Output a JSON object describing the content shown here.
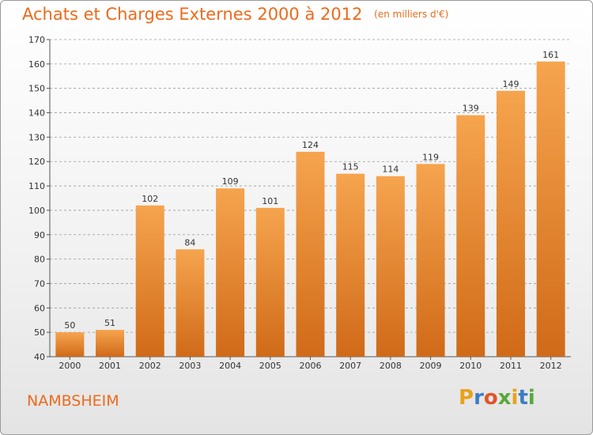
{
  "title": "Achats et Charges Externes 2000 à 2012",
  "unit": "(en milliers d'€)",
  "location": "NAMBSHEIM",
  "brand": {
    "letters": [
      "P",
      "r",
      "o",
      "x",
      "i",
      "t",
      "i"
    ],
    "colors": [
      "#e8a21a",
      "#3c7dc4",
      "#e0542a",
      "#5aa83a",
      "#e8a21a",
      "#3c7dc4",
      "#5aa83a"
    ]
  },
  "colors": {
    "accent": "#ec6a1c",
    "bar_top": "#f6a44e",
    "bar_bottom": "#d06a18",
    "grid": "#9a9a9a"
  },
  "chart_data": {
    "type": "bar",
    "categories": [
      "2000",
      "2001",
      "2002",
      "2003",
      "2004",
      "2005",
      "2006",
      "2007",
      "2008",
      "2009",
      "2010",
      "2011",
      "2012"
    ],
    "values": [
      50,
      51,
      102,
      84,
      109,
      101,
      124,
      115,
      114,
      119,
      139,
      149,
      161
    ],
    "ylim": [
      40,
      170
    ],
    "yticks": [
      40,
      50,
      60,
      70,
      80,
      90,
      100,
      110,
      120,
      130,
      140,
      150,
      160,
      170
    ],
    "grid": "dashed horizontal",
    "data_labels": true
  }
}
